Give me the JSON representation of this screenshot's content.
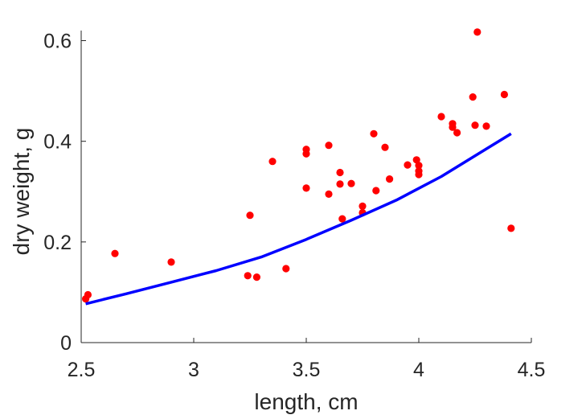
{
  "chart_data": {
    "type": "scatter",
    "xlabel": "length, cm",
    "ylabel": "dry weight, g",
    "xlim": [
      2.5,
      4.5
    ],
    "ylim": [
      0,
      0.62
    ],
    "x_ticks": [
      2.5,
      3,
      3.5,
      4,
      4.5
    ],
    "x_tick_labels": [
      "2.5",
      "3",
      "3.5",
      "4",
      "4.5"
    ],
    "y_ticks": [
      0,
      0.2,
      0.4,
      0.6
    ],
    "y_tick_labels": [
      "0",
      "0.2",
      "0.4",
      "0.6"
    ],
    "grid": false,
    "series": [
      {
        "kind": "scatter",
        "color": "#ff0000",
        "points": [
          [
            2.52,
            0.087
          ],
          [
            2.53,
            0.095
          ],
          [
            2.65,
            0.177
          ],
          [
            2.9,
            0.16
          ],
          [
            3.24,
            0.133
          ],
          [
            3.25,
            0.253
          ],
          [
            3.28,
            0.13
          ],
          [
            3.35,
            0.36
          ],
          [
            3.41,
            0.147
          ],
          [
            3.5,
            0.307
          ],
          [
            3.5,
            0.375
          ],
          [
            3.5,
            0.384
          ],
          [
            3.6,
            0.392
          ],
          [
            3.6,
            0.295
          ],
          [
            3.65,
            0.338
          ],
          [
            3.65,
            0.315
          ],
          [
            3.66,
            0.246
          ],
          [
            3.7,
            0.316
          ],
          [
            3.75,
            0.271
          ],
          [
            3.75,
            0.258
          ],
          [
            3.8,
            0.415
          ],
          [
            3.81,
            0.302
          ],
          [
            3.85,
            0.388
          ],
          [
            3.87,
            0.325
          ],
          [
            3.95,
            0.353
          ],
          [
            3.99,
            0.363
          ],
          [
            4.0,
            0.352
          ],
          [
            4.0,
            0.341
          ],
          [
            4.0,
            0.334
          ],
          [
            4.1,
            0.449
          ],
          [
            4.15,
            0.435
          ],
          [
            4.15,
            0.428
          ],
          [
            4.17,
            0.417
          ],
          [
            4.24,
            0.488
          ],
          [
            4.25,
            0.432
          ],
          [
            4.26,
            0.617
          ],
          [
            4.3,
            0.43
          ],
          [
            4.38,
            0.493
          ],
          [
            4.41,
            0.227
          ]
        ]
      },
      {
        "kind": "line",
        "color": "#0000ff",
        "x": [
          2.52,
          2.7,
          2.9,
          3.1,
          3.3,
          3.5,
          3.7,
          3.9,
          4.1,
          4.3,
          4.41
        ],
        "values": [
          0.077,
          0.097,
          0.12,
          0.143,
          0.17,
          0.205,
          0.243,
          0.283,
          0.33,
          0.385,
          0.415
        ]
      }
    ]
  }
}
